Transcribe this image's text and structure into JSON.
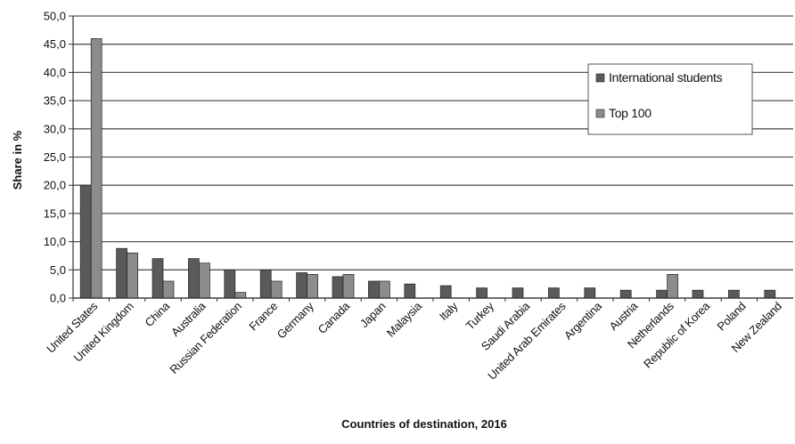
{
  "chart_data": {
    "type": "bar",
    "title": "",
    "xlabel": "Countries of destination, 2016",
    "ylabel": "Share in %",
    "ylim": [
      0,
      50
    ],
    "yticks": [
      "0,0",
      "5,0",
      "10,0",
      "15,0",
      "20,0",
      "25,0",
      "30,0",
      "35,0",
      "40,0",
      "45,0",
      "50,0"
    ],
    "grid": "horizontal",
    "legend_position": "right",
    "categories": [
      "United States",
      "United Kingdom",
      "China",
      "Australia",
      "Russian Federation",
      "France",
      "Germany",
      "Canada",
      "Japan",
      "Malaysia",
      "Italy",
      "Turkey",
      "Saudi Arabia",
      "United Arab Emirates",
      "Argentina",
      "Austria",
      "Netherlands",
      "Republic of Korea",
      "Poland",
      "New Zealand"
    ],
    "series": [
      {
        "name": "International students",
        "color": "#5a5a5a",
        "values": [
          20.0,
          8.8,
          7.0,
          7.0,
          5.0,
          5.0,
          4.5,
          3.8,
          3.0,
          2.5,
          2.2,
          1.8,
          1.8,
          1.8,
          1.8,
          1.4,
          1.4,
          1.4,
          1.4,
          1.4
        ]
      },
      {
        "name": "Top 100",
        "color": "#8c8c8c",
        "values": [
          46.0,
          8.0,
          3.0,
          6.2,
          1.0,
          3.0,
          4.2,
          4.2,
          3.0,
          null,
          null,
          null,
          null,
          null,
          null,
          null,
          4.2,
          null,
          null,
          null
        ]
      }
    ]
  }
}
